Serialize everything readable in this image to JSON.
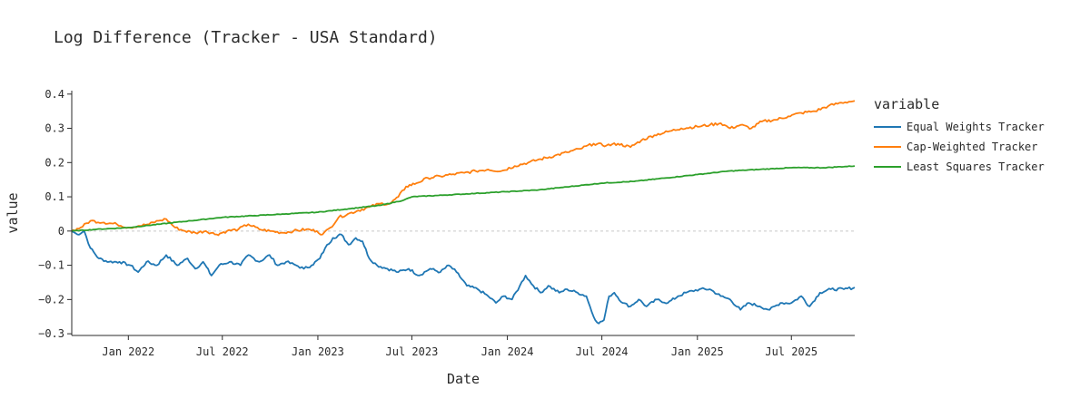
{
  "chart_data": {
    "type": "line",
    "title": "Log Difference (Tracker - USA Standard)",
    "xlabel": "Date",
    "ylabel": "value",
    "x_range": [
      "2021-09-14",
      "2025-10-31"
    ],
    "ylim": [
      -0.305,
      0.41
    ],
    "x_ticks": [
      {
        "date": "2022-01-01",
        "label": "Jan 2022"
      },
      {
        "date": "2022-07-01",
        "label": "Jul 2022"
      },
      {
        "date": "2023-01-01",
        "label": "Jan 2023"
      },
      {
        "date": "2023-07-01",
        "label": "Jul 2023"
      },
      {
        "date": "2024-01-01",
        "label": "Jan 2024"
      },
      {
        "date": "2024-07-01",
        "label": "Jul 2024"
      },
      {
        "date": "2025-01-01",
        "label": "Jan 2025"
      },
      {
        "date": "2025-07-01",
        "label": "Jul 2025"
      }
    ],
    "y_ticks": [
      {
        "value": 0.4,
        "label": "0.4"
      },
      {
        "value": 0.3,
        "label": "0.3"
      },
      {
        "value": 0.2,
        "label": "0.2"
      },
      {
        "value": 0.1,
        "label": "0.1"
      },
      {
        "value": 0,
        "label": "0"
      },
      {
        "value": -0.1,
        "label": "−0.1"
      },
      {
        "value": -0.2,
        "label": "−0.2"
      },
      {
        "value": -0.3,
        "label": "−0.3"
      }
    ],
    "zero_line": true,
    "legend_title": "variable",
    "legend_position": "right",
    "series": [
      {
        "name": "Equal Weights Tracker",
        "color": "#1f77b4",
        "points": [
          [
            "2021-09-14",
            0.0
          ],
          [
            "2021-09-25",
            -0.01
          ],
          [
            "2021-10-08",
            0.0
          ],
          [
            "2021-10-20",
            -0.05
          ],
          [
            "2021-11-05",
            -0.08
          ],
          [
            "2021-11-25",
            -0.09
          ],
          [
            "2021-12-15",
            -0.09
          ],
          [
            "2022-01-05",
            -0.1
          ],
          [
            "2022-01-20",
            -0.12
          ],
          [
            "2022-02-05",
            -0.09
          ],
          [
            "2022-02-25",
            -0.1
          ],
          [
            "2022-03-15",
            -0.07
          ],
          [
            "2022-04-05",
            -0.1
          ],
          [
            "2022-04-25",
            -0.08
          ],
          [
            "2022-05-10",
            -0.11
          ],
          [
            "2022-05-25",
            -0.09
          ],
          [
            "2022-06-10",
            -0.13
          ],
          [
            "2022-06-25",
            -0.1
          ],
          [
            "2022-07-15",
            -0.09
          ],
          [
            "2022-08-05",
            -0.1
          ],
          [
            "2022-08-20",
            -0.07
          ],
          [
            "2022-09-10",
            -0.09
          ],
          [
            "2022-09-30",
            -0.07
          ],
          [
            "2022-10-15",
            -0.1
          ],
          [
            "2022-11-01",
            -0.09
          ],
          [
            "2022-11-20",
            -0.1
          ],
          [
            "2022-12-05",
            -0.11
          ],
          [
            "2022-12-20",
            -0.1
          ],
          [
            "2023-01-05",
            -0.08
          ],
          [
            "2023-01-15",
            -0.05
          ],
          [
            "2023-01-30",
            -0.02
          ],
          [
            "2023-02-15",
            -0.01
          ],
          [
            "2023-03-01",
            -0.04
          ],
          [
            "2023-03-15",
            -0.02
          ],
          [
            "2023-03-28",
            -0.03
          ],
          [
            "2023-04-10",
            -0.08
          ],
          [
            "2023-04-25",
            -0.1
          ],
          [
            "2023-05-15",
            -0.11
          ],
          [
            "2023-06-05",
            -0.12
          ],
          [
            "2023-06-25",
            -0.11
          ],
          [
            "2023-07-15",
            -0.13
          ],
          [
            "2023-08-05",
            -0.11
          ],
          [
            "2023-08-25",
            -0.12
          ],
          [
            "2023-09-10",
            -0.1
          ],
          [
            "2023-09-25",
            -0.12
          ],
          [
            "2023-10-15",
            -0.16
          ],
          [
            "2023-11-05",
            -0.17
          ],
          [
            "2023-11-25",
            -0.19
          ],
          [
            "2023-12-10",
            -0.21
          ],
          [
            "2023-12-25",
            -0.19
          ],
          [
            "2024-01-10",
            -0.2
          ],
          [
            "2024-01-25",
            -0.16
          ],
          [
            "2024-02-05",
            -0.13
          ],
          [
            "2024-02-20",
            -0.16
          ],
          [
            "2024-03-05",
            -0.18
          ],
          [
            "2024-03-20",
            -0.16
          ],
          [
            "2024-04-10",
            -0.18
          ],
          [
            "2024-04-25",
            -0.17
          ],
          [
            "2024-05-15",
            -0.18
          ],
          [
            "2024-06-01",
            -0.19
          ],
          [
            "2024-06-15",
            -0.25
          ],
          [
            "2024-06-25",
            -0.27
          ],
          [
            "2024-07-05",
            -0.26
          ],
          [
            "2024-07-15",
            -0.19
          ],
          [
            "2024-07-25",
            -0.18
          ],
          [
            "2024-08-10",
            -0.21
          ],
          [
            "2024-08-25",
            -0.22
          ],
          [
            "2024-09-10",
            -0.2
          ],
          [
            "2024-09-25",
            -0.22
          ],
          [
            "2024-10-15",
            -0.2
          ],
          [
            "2024-11-05",
            -0.21
          ],
          [
            "2024-11-25",
            -0.19
          ],
          [
            "2024-12-10",
            -0.18
          ],
          [
            "2025-01-05",
            -0.17
          ],
          [
            "2025-01-25",
            -0.17
          ],
          [
            "2025-02-15",
            -0.19
          ],
          [
            "2025-03-05",
            -0.2
          ],
          [
            "2025-03-25",
            -0.23
          ],
          [
            "2025-04-10",
            -0.21
          ],
          [
            "2025-05-01",
            -0.22
          ],
          [
            "2025-05-20",
            -0.23
          ],
          [
            "2025-06-10",
            -0.21
          ],
          [
            "2025-07-01",
            -0.21
          ],
          [
            "2025-07-20",
            -0.19
          ],
          [
            "2025-08-05",
            -0.22
          ],
          [
            "2025-08-25",
            -0.18
          ],
          [
            "2025-09-15",
            -0.17
          ],
          [
            "2025-10-10",
            -0.17
          ],
          [
            "2025-10-31",
            -0.165
          ]
        ]
      },
      {
        "name": "Cap-Weighted Tracker",
        "color": "#ff7f0e",
        "points": [
          [
            "2021-09-14",
            0.0
          ],
          [
            "2021-10-01",
            0.01
          ],
          [
            "2021-10-20",
            0.03
          ],
          [
            "2021-11-15",
            0.025
          ],
          [
            "2021-12-10",
            0.02
          ],
          [
            "2022-01-01",
            0.01
          ],
          [
            "2022-01-20",
            0.015
          ],
          [
            "2022-02-10",
            0.02
          ],
          [
            "2022-02-28",
            0.03
          ],
          [
            "2022-03-15",
            0.035
          ],
          [
            "2022-04-01",
            0.01
          ],
          [
            "2022-04-20",
            0.0
          ],
          [
            "2022-05-10",
            -0.005
          ],
          [
            "2022-05-30",
            0.0
          ],
          [
            "2022-06-20",
            -0.01
          ],
          [
            "2022-07-10",
            0.0
          ],
          [
            "2022-08-01",
            0.005
          ],
          [
            "2022-08-20",
            0.02
          ],
          [
            "2022-09-10",
            0.005
          ],
          [
            "2022-10-01",
            0.0
          ],
          [
            "2022-10-25",
            -0.005
          ],
          [
            "2022-11-15",
            0.0
          ],
          [
            "2022-12-10",
            0.005
          ],
          [
            "2022-12-30",
            0.0
          ],
          [
            "2023-01-10",
            -0.01
          ],
          [
            "2023-01-25",
            0.01
          ],
          [
            "2023-02-10",
            0.04
          ],
          [
            "2023-02-28",
            0.05
          ],
          [
            "2023-03-20",
            0.06
          ],
          [
            "2023-04-10",
            0.07
          ],
          [
            "2023-05-01",
            0.08
          ],
          [
            "2023-05-20",
            0.08
          ],
          [
            "2023-06-05",
            0.1
          ],
          [
            "2023-06-20",
            0.13
          ],
          [
            "2023-07-10",
            0.14
          ],
          [
            "2023-08-01",
            0.155
          ],
          [
            "2023-08-25",
            0.16
          ],
          [
            "2023-09-15",
            0.165
          ],
          [
            "2023-10-10",
            0.17
          ],
          [
            "2023-11-01",
            0.175
          ],
          [
            "2023-11-25",
            0.18
          ],
          [
            "2023-12-20",
            0.175
          ],
          [
            "2024-01-15",
            0.19
          ],
          [
            "2024-02-10",
            0.2
          ],
          [
            "2024-03-05",
            0.21
          ],
          [
            "2024-04-01",
            0.22
          ],
          [
            "2024-04-25",
            0.23
          ],
          [
            "2024-05-20",
            0.24
          ],
          [
            "2024-06-15",
            0.255
          ],
          [
            "2024-07-10",
            0.25
          ],
          [
            "2024-08-01",
            0.255
          ],
          [
            "2024-08-25",
            0.245
          ],
          [
            "2024-09-15",
            0.265
          ],
          [
            "2024-10-10",
            0.28
          ],
          [
            "2024-11-05",
            0.29
          ],
          [
            "2024-12-01",
            0.3
          ],
          [
            "2025-01-01",
            0.305
          ],
          [
            "2025-01-25",
            0.31
          ],
          [
            "2025-02-15",
            0.315
          ],
          [
            "2025-03-05",
            0.3
          ],
          [
            "2025-03-25",
            0.31
          ],
          [
            "2025-04-15",
            0.3
          ],
          [
            "2025-05-05",
            0.32
          ],
          [
            "2025-06-01",
            0.325
          ],
          [
            "2025-06-25",
            0.335
          ],
          [
            "2025-07-20",
            0.345
          ],
          [
            "2025-08-15",
            0.35
          ],
          [
            "2025-09-10",
            0.365
          ],
          [
            "2025-10-05",
            0.375
          ],
          [
            "2025-10-31",
            0.38
          ]
        ]
      },
      {
        "name": "Least Squares Tracker",
        "color": "#2ca02c",
        "points": [
          [
            "2021-09-14",
            0.0
          ],
          [
            "2021-11-01",
            0.005
          ],
          [
            "2022-01-01",
            0.01
          ],
          [
            "2022-03-01",
            0.02
          ],
          [
            "2022-05-01",
            0.03
          ],
          [
            "2022-07-01",
            0.04
          ],
          [
            "2022-09-01",
            0.045
          ],
          [
            "2022-11-01",
            0.05
          ],
          [
            "2023-01-01",
            0.055
          ],
          [
            "2023-03-01",
            0.065
          ],
          [
            "2023-05-01",
            0.075
          ],
          [
            "2023-06-15",
            0.09
          ],
          [
            "2023-07-01",
            0.1
          ],
          [
            "2023-09-01",
            0.105
          ],
          [
            "2023-11-01",
            0.11
          ],
          [
            "2024-01-01",
            0.115
          ],
          [
            "2024-03-01",
            0.12
          ],
          [
            "2024-05-01",
            0.13
          ],
          [
            "2024-07-01",
            0.14
          ],
          [
            "2024-09-01",
            0.145
          ],
          [
            "2024-11-01",
            0.155
          ],
          [
            "2025-01-01",
            0.165
          ],
          [
            "2025-03-01",
            0.175
          ],
          [
            "2025-05-01",
            0.18
          ],
          [
            "2025-07-01",
            0.185
          ],
          [
            "2025-09-01",
            0.185
          ],
          [
            "2025-10-31",
            0.19
          ]
        ]
      }
    ]
  }
}
